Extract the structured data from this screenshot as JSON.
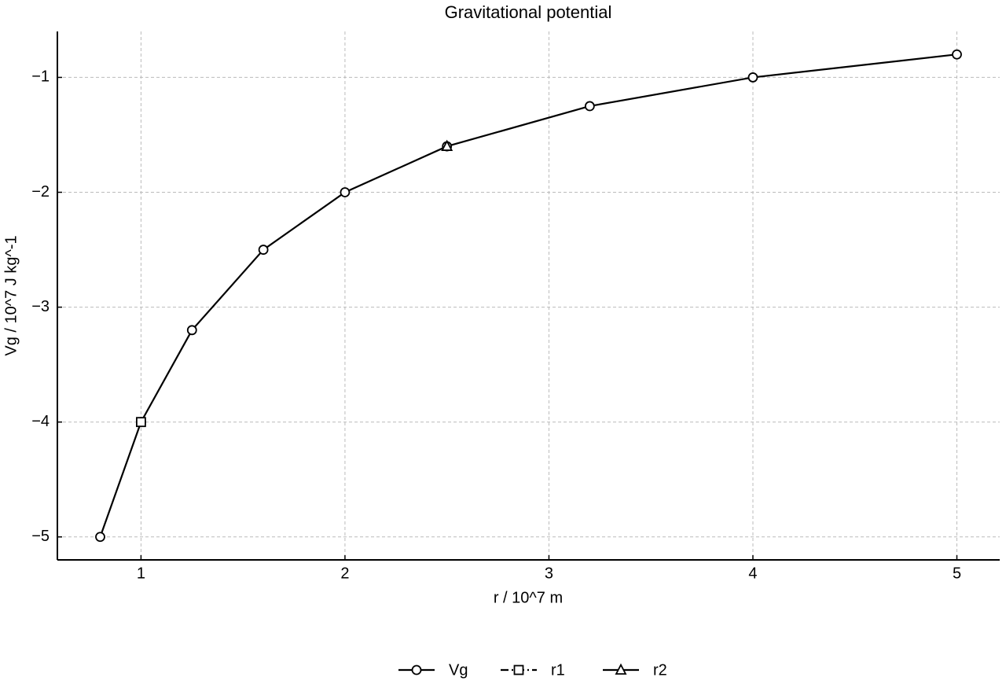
{
  "chart_data": {
    "type": "line",
    "title": "Gravitational potential",
    "x_label": "r / 10^7 m",
    "y_label": "Vg / 10^7 J kg^-1",
    "series": [
      {
        "name": "Vg",
        "color": "#000000",
        "marker": "circle",
        "linestyle": "solid",
        "x": [
          0.8,
          1,
          1.25,
          1.6,
          2,
          2.5,
          3.2,
          4,
          5
        ],
        "values": [
          -5,
          -4,
          -3.2,
          -2.5,
          -2,
          -1.6,
          -1.25,
          -1,
          -0.8
        ]
      },
      {
        "name": "r1",
        "color": "#000000",
        "marker": "square",
        "linestyle": "dashdot",
        "x": [
          1
        ],
        "values": [
          -4
        ]
      },
      {
        "name": "r2",
        "color": "#000000",
        "marker": "triangle",
        "linestyle": "solid",
        "x": [
          2.5
        ],
        "values": [
          -1.6
        ]
      }
    ],
    "xlim": [
      0.59,
      5.21
    ],
    "ylim": [
      -5.2,
      -0.6
    ],
    "xticks": [
      1,
      2,
      3,
      4,
      5
    ],
    "yticks": [
      {
        "value": -5,
        "label": "−5"
      },
      {
        "value": -4,
        "label": "−4"
      },
      {
        "value": -3,
        "label": "−3"
      },
      {
        "value": -2,
        "label": "−2"
      },
      {
        "value": -1,
        "label": "−1"
      }
    ],
    "grid": true,
    "legend": "bottom"
  }
}
